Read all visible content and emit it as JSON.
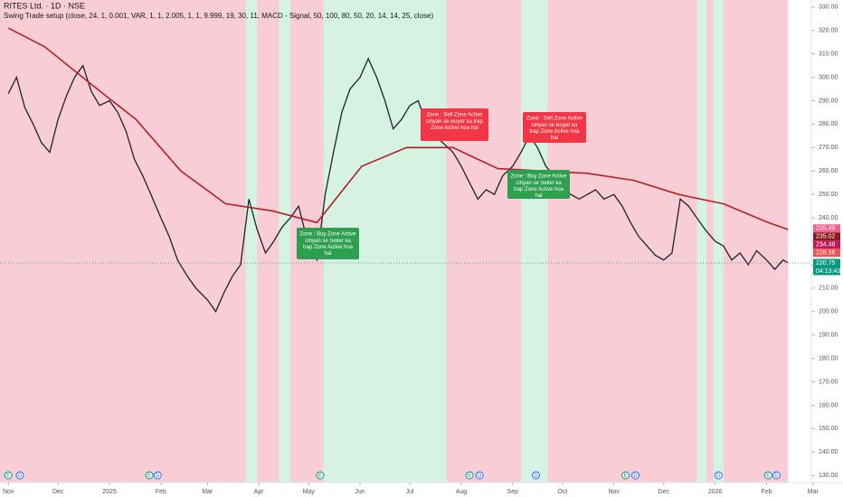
{
  "chart_data": {
    "type": "line",
    "title": "RITES Ltd. · 1D · NSE",
    "subtitle": "Swing Trade setup (close, 24, 1, 0.001, VAR, 1, 1, 2.005, 1, 1, 9.999, 19, 30, 11, MACD - Signal, 50, 100, 80, 50, 20, 14, 14, 25, close)",
    "x": [
      0,
      5,
      10,
      15,
      20,
      25,
      30,
      35,
      40,
      45,
      50,
      55,
      61,
      66,
      71,
      76,
      81,
      86,
      92,
      97,
      102,
      108,
      113,
      120,
      125,
      130,
      135,
      140,
      145,
      150,
      155,
      160,
      165,
      170,
      175,
      181,
      186,
      191,
      196,
      201,
      206,
      212,
      217,
      222,
      227,
      232,
      237,
      242,
      247,
      252,
      257,
      262,
      268,
      273,
      278,
      283,
      288,
      293,
      298,
      304,
      309,
      314,
      319,
      324,
      329,
      334,
      339,
      344,
      349,
      354,
      359,
      365,
      370,
      375,
      380,
      385,
      390,
      395,
      400,
      405,
      410,
      415,
      420,
      426,
      431,
      436,
      441,
      446,
      451,
      457,
      462,
      467,
      470
    ],
    "series": [
      {
        "name": "RITES",
        "color": "#1e222d",
        "values": [
          293,
          300,
          287,
          280,
          272,
          268,
          282,
          292,
          300,
          305,
          294,
          288,
          290,
          285,
          277,
          265,
          258,
          250,
          240,
          232,
          222,
          215,
          210,
          205,
          200,
          208,
          215,
          220,
          248,
          235,
          225,
          230,
          236,
          240,
          245,
          228,
          222,
          250,
          268,
          285,
          295,
          300,
          308,
          300,
          290,
          278,
          282,
          288,
          290,
          280,
          275,
          272,
          268,
          262,
          255,
          248,
          252,
          250,
          258,
          262,
          268,
          275,
          270,
          262,
          258,
          252,
          250,
          248,
          250,
          252,
          248,
          250,
          245,
          238,
          232,
          228,
          224,
          222,
          225,
          248,
          245,
          240,
          235,
          230,
          228,
          222,
          225,
          220,
          226,
          222,
          218,
          222,
          220.75
        ]
      },
      {
        "name": "Trend",
        "color": "#b22222",
        "x": [
          0,
          22,
          50,
          77,
          104,
          131,
          159,
          186,
          213,
          240,
          268,
          295,
          322,
          349,
          377,
          404,
          431,
          458,
          470
        ],
        "values": [
          321,
          313,
          297,
          282,
          260,
          246,
          243,
          238,
          262,
          270,
          270,
          261,
          260,
          259,
          256,
          250,
          246,
          238,
          235
        ]
      }
    ],
    "zones": [
      [
        143,
        150
      ],
      [
        163,
        170
      ],
      [
        190,
        264
      ],
      [
        309,
        325
      ],
      [
        415,
        421
      ],
      [
        425,
        431
      ]
    ],
    "xlim": [
      -5,
      484
    ],
    "ylim": [
      127,
      333
    ],
    "xticks": [
      {
        "value": 0,
        "label": "Nov"
      },
      {
        "value": 30,
        "label": "Dec"
      },
      {
        "value": 61,
        "label": "2025"
      },
      {
        "value": 92,
        "label": "Feb"
      },
      {
        "value": 120,
        "label": "Mar"
      },
      {
        "value": 151,
        "label": "Apr"
      },
      {
        "value": 181,
        "label": "May"
      },
      {
        "value": 212,
        "label": "Jun"
      },
      {
        "value": 242,
        "label": "Jul"
      },
      {
        "value": 273,
        "label": "Aug"
      },
      {
        "value": 304,
        "label": "Sep"
      },
      {
        "value": 334,
        "label": "Oct"
      },
      {
        "value": 365,
        "label": "Nov"
      },
      {
        "value": 395,
        "label": "Dec"
      },
      {
        "value": 426,
        "label": "2026"
      },
      {
        "value": 457,
        "label": "Feb"
      },
      {
        "value": 485,
        "label": "Mar"
      }
    ],
    "yticks": [
      {
        "value": 130,
        "label": "130.00"
      },
      {
        "value": 140,
        "label": "140.00"
      },
      {
        "value": 150,
        "label": "150.00"
      },
      {
        "value": 160,
        "label": "160.00"
      },
      {
        "value": 170,
        "label": "170.00"
      },
      {
        "value": 180,
        "label": "180.00"
      },
      {
        "value": 190,
        "label": "190.00"
      },
      {
        "value": 200,
        "label": "200.00"
      },
      {
        "value": 210,
        "label": "210.00"
      },
      {
        "value": 220,
        "label": "220.00"
      },
      {
        "value": 230,
        "label": "230.00"
      },
      {
        "value": 240,
        "label": "240.00"
      },
      {
        "value": 250,
        "label": "250.00"
      },
      {
        "value": 260,
        "label": "260.00"
      },
      {
        "value": 270,
        "label": "270.00"
      },
      {
        "value": 280,
        "label": "280.00"
      },
      {
        "value": 290,
        "label": "290.00"
      },
      {
        "value": 300,
        "label": "300.00"
      },
      {
        "value": 310,
        "label": "310.00"
      },
      {
        "value": 320,
        "label": "320.00"
      },
      {
        "value": 330,
        "label": "330.00"
      }
    ],
    "badges": [
      {
        "value": 235.49,
        "color": "#f06292"
      },
      {
        "value": 235.02,
        "color": "#8b1a1a"
      },
      {
        "value": 234.48,
        "color": "#c2185b"
      },
      {
        "value": 228.56,
        "color": "#ef5350"
      },
      {
        "value": 220.75,
        "color": "#089981",
        "timer": "04:13:43"
      }
    ],
    "annotations": [
      {
        "kind": "sell",
        "title": "Zone : Sell Zone Active",
        "text": "Dhyan se Buyer ka trap Zone Active hoa hai"
      },
      {
        "kind": "sell",
        "title": "Zone : Sell Zone Active",
        "text": "Dhyan se Buyer ka trap Zone Active hoa hai"
      },
      {
        "kind": "buy",
        "title": "Zone : Buy Zone Active",
        "text": "Dhyan se Seller ka trap Zone Active hoa hai"
      },
      {
        "kind": "buy",
        "title": "Zone : Buy Zone Active",
        "text": "Dhyan se Seller ka trap Zone Active hoa hai"
      }
    ],
    "events": [
      {
        "x": 0,
        "label": "E"
      },
      {
        "x": 7,
        "label": "D"
      },
      {
        "x": 85,
        "label": "E"
      },
      {
        "x": 90,
        "label": "D"
      },
      {
        "x": 188,
        "label": "E"
      },
      {
        "x": 278,
        "label": "E"
      },
      {
        "x": 284,
        "label": "D"
      },
      {
        "x": 318,
        "label": "D"
      },
      {
        "x": 372,
        "label": "E"
      },
      {
        "x": 378,
        "label": "D"
      },
      {
        "x": 428,
        "label": "D"
      },
      {
        "x": 458,
        "label": "E"
      },
      {
        "x": 463,
        "label": "D"
      }
    ]
  }
}
